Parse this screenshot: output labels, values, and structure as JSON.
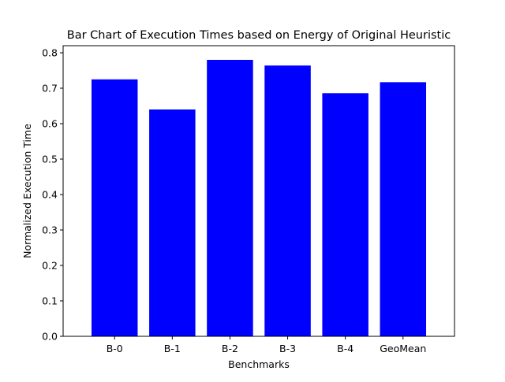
{
  "chart_data": {
    "type": "bar",
    "title": "Bar Chart of Execution Times based on Energy of Original Heuristic",
    "xlabel": "Benchmarks",
    "ylabel": "Normalized Execution Time",
    "categories": [
      "B-0",
      "B-1",
      "B-2",
      "B-3",
      "B-4",
      "GeoMean"
    ],
    "values": [
      0.725,
      0.64,
      0.78,
      0.764,
      0.686,
      0.717
    ],
    "ylim": [
      0,
      0.82
    ],
    "yticks": [
      "0.0",
      "0.1",
      "0.2",
      "0.3",
      "0.4",
      "0.5",
      "0.6",
      "0.7",
      "0.8"
    ],
    "bar_color": "#0000ff",
    "grid": false,
    "legend": false
  }
}
